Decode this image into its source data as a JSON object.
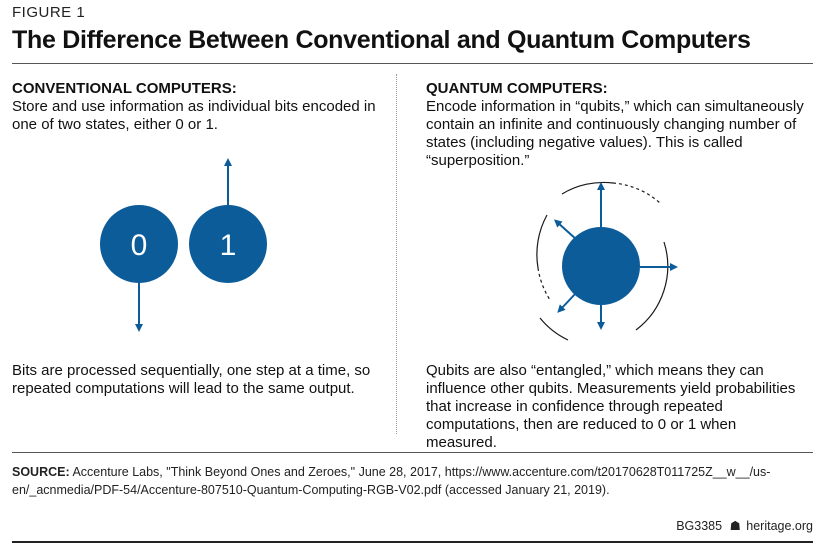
{
  "figure_label": "FIGURE 1",
  "title": "The Difference Between Conventional and Quantum Computers",
  "conventional": {
    "heading": "CONVENTIONAL COMPUTERS:",
    "description": "Store and use information as individual bits encoded in one of two states, either 0 or 1.",
    "bits": [
      "0",
      "1"
    ],
    "footer_text": "Bits are processed sequentially, one step at a time, so repeated computations will lead to the same output."
  },
  "quantum": {
    "heading": "QUANTUM COMPUTERS:",
    "description": "Encode information in “qubits,” which can simultaneously contain an infinite and continuously changing number of states (including negative values). This is called “superposition.”",
    "footer_text": "Qubits are also “entangled,” which means they can influence other qubits. Measurements yield probabilities that increase in confidence through repeated computations, then are reduced to 0 or 1 when measured."
  },
  "source": {
    "label": "SOURCE:",
    "text": "Accenture Labs, \"Think Beyond Ones and Zeroes,\" June 28, 2017, https://www.accenture.com/t20170628T011725Z__w__/us-en/_acnmedia/PDF-54/Accenture-807510-Quantum-Computing-RGB-V02.pdf (accessed January 21, 2019)."
  },
  "footer": {
    "code": "BG3385",
    "bell_icon": "liberty-bell-icon",
    "site": "heritage.org"
  },
  "colors": {
    "accent_blue": "#0d5c9a",
    "text": "#111111",
    "rule": "#555555"
  }
}
